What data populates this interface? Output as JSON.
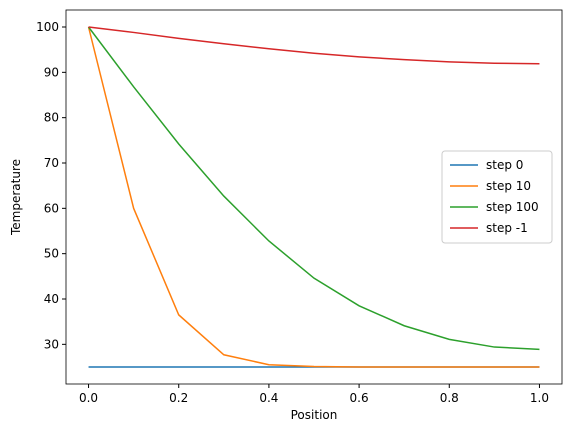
{
  "chart_data": {
    "type": "line",
    "x_label": "Position",
    "y_label": "Temperature",
    "x": [
      0,
      0.1,
      0.2,
      0.3,
      0.4,
      0.5,
      0.6,
      0.7,
      0.8,
      0.9,
      1.0
    ],
    "series": [
      {
        "name": "step 0",
        "color": "#1f77b4",
        "values": [
          25,
          25,
          25,
          25,
          25,
          25,
          25,
          25,
          25,
          25,
          25
        ]
      },
      {
        "name": "step 10",
        "color": "#ff7f0e",
        "values": [
          100,
          60,
          36.5,
          27.7,
          25.5,
          25.1,
          25,
          25,
          25,
          25,
          25
        ]
      },
      {
        "name": "step 100",
        "color": "#2ca02c",
        "values": [
          100,
          86.8,
          74.2,
          62.7,
          52.8,
          44.6,
          38.5,
          34.1,
          31.1,
          29.4,
          28.9
        ]
      },
      {
        "name": "step -1",
        "color": "#d62728",
        "values": [
          100,
          98.8,
          97.5,
          96.3,
          95.2,
          94.2,
          93.4,
          92.8,
          92.3,
          92.0,
          91.9
        ]
      }
    ],
    "xlim": [
      -0.05,
      1.05
    ],
    "xticks": [
      {
        "value": 0,
        "label": "0.0"
      },
      0.2,
      0.4,
      0.6,
      0.8,
      {
        "value": 1,
        "label": "1.0"
      }
    ],
    "ylim": [
      21.25,
      103.75
    ],
    "yticks": [
      30,
      40,
      50,
      60,
      70,
      80,
      90,
      100
    ],
    "legend": "center right",
    "grid": false
  }
}
